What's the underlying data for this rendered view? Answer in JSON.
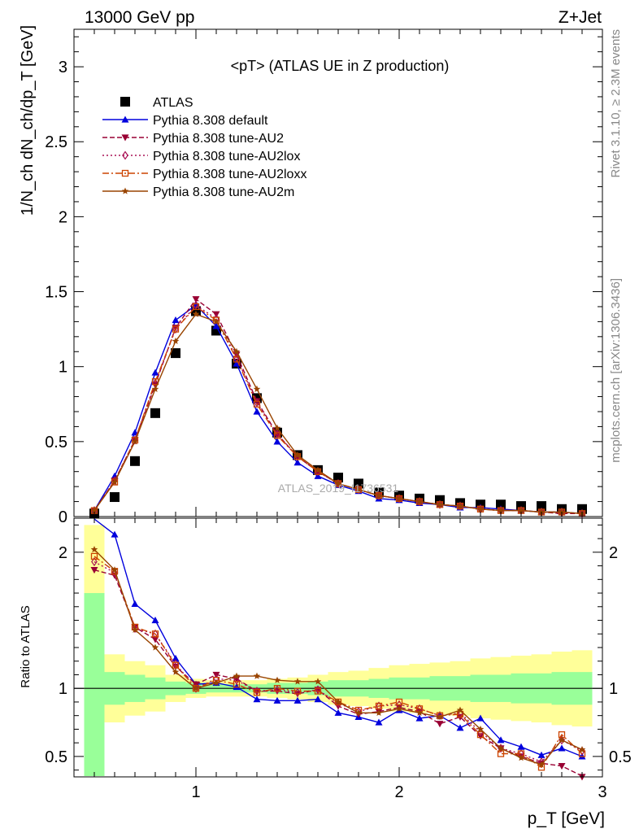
{
  "header": {
    "left": "13000 GeV pp",
    "right": "Z+Jet"
  },
  "side": {
    "rivet": "Rivet 3.1.10, ≥ 2.3M events",
    "mcplots": "mcplots.cern.ch [arXiv:1306.3436]"
  },
  "watermark": "ATLAS_2019_I1736531",
  "colors": {
    "data": "#000000",
    "default": "#0000dd",
    "au2": "#990033",
    "au2lox": "#aa1155",
    "au2loxx": "#cc4400",
    "au2m": "#994400",
    "band_stat": "#99ff99",
    "band_total": "#ffff99"
  },
  "chart_data": [
    {
      "type": "scatter",
      "title": "<pT> (ATLAS UE in Z production)",
      "xlabel": "p_T [GeV]",
      "ylabel": "1/N_ch dN_ch/dp_T [GeV]",
      "xlim": [
        0.4,
        3.0
      ],
      "ylim": [
        0,
        3.25
      ],
      "yticks": [
        0,
        0.5,
        1,
        1.5,
        2,
        2.5,
        3
      ],
      "legend_position": "top-left",
      "x": [
        0.5,
        0.6,
        0.7,
        0.8,
        0.9,
        1.0,
        1.1,
        1.2,
        1.3,
        1.4,
        1.5,
        1.6,
        1.7,
        1.8,
        1.9,
        2.0,
        2.1,
        2.2,
        2.3,
        2.4,
        2.5,
        2.6,
        2.7,
        2.8,
        2.9
      ],
      "series": [
        {
          "key": "data",
          "name": "ATLAS",
          "marker": "square",
          "values": [
            0.02,
            0.13,
            0.37,
            0.69,
            1.09,
            1.37,
            1.24,
            1.02,
            0.79,
            0.56,
            0.41,
            0.31,
            0.26,
            0.22,
            0.16,
            0.14,
            0.12,
            0.11,
            0.09,
            0.08,
            0.08,
            0.07,
            0.07,
            0.05,
            0.05
          ]
        },
        {
          "key": "default",
          "name": "Pythia 8.308 default",
          "marker": "triangle-up",
          "dash": "",
          "values": [
            0.04,
            0.27,
            0.56,
            0.96,
            1.31,
            1.41,
            1.27,
            1.02,
            0.7,
            0.5,
            0.36,
            0.27,
            0.21,
            0.17,
            0.12,
            0.11,
            0.09,
            0.08,
            0.06,
            0.06,
            0.05,
            0.04,
            0.03,
            0.03,
            0.02
          ]
        },
        {
          "key": "au2",
          "name": "Pythia 8.308 tune-AU2",
          "marker": "triangle-down",
          "dash": "6,3",
          "values": [
            0.04,
            0.24,
            0.51,
            0.88,
            1.26,
            1.45,
            1.35,
            1.08,
            0.77,
            0.55,
            0.4,
            0.3,
            0.22,
            0.18,
            0.14,
            0.12,
            0.1,
            0.08,
            0.07,
            0.05,
            0.04,
            0.04,
            0.03,
            0.02,
            0.02
          ]
        },
        {
          "key": "au2lox",
          "name": "Pythia 8.308 tune-AU2lox",
          "marker": "diamond-open",
          "dash": "2,3",
          "values": [
            0.04,
            0.24,
            0.51,
            0.89,
            1.25,
            1.41,
            1.32,
            1.06,
            0.76,
            0.55,
            0.4,
            0.3,
            0.22,
            0.18,
            0.14,
            0.12,
            0.1,
            0.08,
            0.07,
            0.05,
            0.04,
            0.04,
            0.03,
            0.03,
            0.02
          ]
        },
        {
          "key": "au2loxx",
          "name": "Pythia 8.308 tune-AU2loxx",
          "marker": "square-open",
          "dash": "8,3,2,3",
          "values": [
            0.04,
            0.23,
            0.51,
            0.9,
            1.25,
            1.4,
            1.31,
            1.05,
            0.75,
            0.54,
            0.4,
            0.3,
            0.22,
            0.18,
            0.14,
            0.12,
            0.1,
            0.08,
            0.07,
            0.05,
            0.04,
            0.04,
            0.03,
            0.03,
            0.02
          ]
        },
        {
          "key": "au2m",
          "name": "Pythia 8.308 tune-AU2m",
          "marker": "star",
          "dash": "",
          "values": [
            0.04,
            0.23,
            0.5,
            0.85,
            1.17,
            1.35,
            1.3,
            1.1,
            0.85,
            0.59,
            0.41,
            0.31,
            0.22,
            0.18,
            0.14,
            0.12,
            0.1,
            0.08,
            0.07,
            0.05,
            0.04,
            0.04,
            0.03,
            0.03,
            0.02
          ]
        }
      ]
    },
    {
      "type": "line",
      "ylabel": "Ratio to ATLAS",
      "xlabel": "p_T [GeV]",
      "xlim": [
        0.4,
        3.0
      ],
      "ylim": [
        0.35,
        2.25
      ],
      "yticks": [
        0.5,
        1,
        2
      ],
      "xticks": [
        1,
        2,
        3
      ],
      "reference_line": 1,
      "x": [
        0.5,
        0.6,
        0.7,
        0.8,
        0.9,
        1.0,
        1.1,
        1.2,
        1.3,
        1.4,
        1.5,
        1.6,
        1.7,
        1.8,
        1.9,
        2.0,
        2.1,
        2.2,
        2.3,
        2.4,
        2.5,
        2.6,
        2.7,
        2.8,
        2.9
      ],
      "bands": {
        "total_lo": [
          0.35,
          0.75,
          0.8,
          0.83,
          0.9,
          0.93,
          0.94,
          0.94,
          0.94,
          0.93,
          0.92,
          0.9,
          0.88,
          0.87,
          0.85,
          0.83,
          0.82,
          0.81,
          0.8,
          0.78,
          0.77,
          0.76,
          0.75,
          0.73,
          0.72
        ],
        "total_hi": [
          2.2,
          1.25,
          1.2,
          1.17,
          1.1,
          1.07,
          1.06,
          1.06,
          1.06,
          1.07,
          1.08,
          1.1,
          1.12,
          1.13,
          1.15,
          1.17,
          1.18,
          1.19,
          1.2,
          1.22,
          1.23,
          1.24,
          1.25,
          1.27,
          1.28
        ],
        "stat_lo": [
          0.35,
          0.88,
          0.9,
          0.92,
          0.95,
          0.96,
          0.97,
          0.97,
          0.97,
          0.96,
          0.96,
          0.95,
          0.94,
          0.94,
          0.93,
          0.92,
          0.92,
          0.91,
          0.91,
          0.9,
          0.9,
          0.89,
          0.89,
          0.88,
          0.88
        ],
        "stat_hi": [
          1.7,
          1.12,
          1.1,
          1.08,
          1.05,
          1.04,
          1.03,
          1.03,
          1.03,
          1.04,
          1.04,
          1.05,
          1.06,
          1.06,
          1.07,
          1.08,
          1.08,
          1.09,
          1.09,
          1.1,
          1.1,
          1.11,
          1.11,
          1.12,
          1.12
        ]
      },
      "series": [
        {
          "key": "default",
          "name": "Pythia 8.308 default",
          "marker": "triangle-up",
          "dash": "",
          "values": [
            2.3,
            2.13,
            1.62,
            1.5,
            1.22,
            1.03,
            1.04,
            1.01,
            0.92,
            0.91,
            0.91,
            0.92,
            0.82,
            0.79,
            0.75,
            0.84,
            0.78,
            0.8,
            0.71,
            0.78,
            0.62,
            0.57,
            0.51,
            0.56,
            0.5
          ]
        },
        {
          "key": "au2",
          "name": "Pythia 8.308 tune-AU2",
          "marker": "triangle-down",
          "dash": "6,3",
          "values": [
            1.87,
            1.83,
            1.45,
            1.36,
            1.16,
            1.03,
            1.1,
            1.07,
            0.98,
            0.98,
            0.96,
            0.99,
            0.87,
            0.81,
            0.83,
            0.86,
            0.83,
            0.74,
            0.79,
            0.65,
            0.56,
            0.5,
            0.45,
            0.43,
            0.35
          ]
        },
        {
          "key": "au2lox",
          "name": "Pythia 8.308 tune-AU2lox",
          "marker": "diamond-open",
          "dash": "2,3",
          "values": [
            1.93,
            1.85,
            1.44,
            1.4,
            1.18,
            1.0,
            1.07,
            1.06,
            0.98,
            0.99,
            0.97,
            0.99,
            0.89,
            0.83,
            0.87,
            0.88,
            0.85,
            0.8,
            0.82,
            0.68,
            0.56,
            0.52,
            0.46,
            0.62,
            0.54
          ]
        },
        {
          "key": "au2loxx",
          "name": "Pythia 8.308 tune-AU2loxx",
          "marker": "square-open",
          "dash": "8,3,2,3",
          "values": [
            1.97,
            1.86,
            1.45,
            1.4,
            1.17,
            1.0,
            1.06,
            1.03,
            0.97,
            1.0,
            0.98,
            0.98,
            0.9,
            0.84,
            0.87,
            0.9,
            0.85,
            0.8,
            0.81,
            0.66,
            0.52,
            0.52,
            0.42,
            0.66,
            0.52
          ]
        },
        {
          "key": "au2m",
          "name": "Pythia 8.308 tune-AU2m",
          "marker": "star",
          "dash": "",
          "values": [
            2.02,
            1.87,
            1.43,
            1.3,
            1.12,
            1.0,
            1.04,
            1.09,
            1.09,
            1.06,
            1.05,
            1.05,
            0.9,
            0.82,
            0.82,
            0.85,
            0.82,
            0.79,
            0.84,
            0.7,
            0.56,
            0.49,
            0.44,
            0.62,
            0.55
          ]
        }
      ]
    }
  ]
}
